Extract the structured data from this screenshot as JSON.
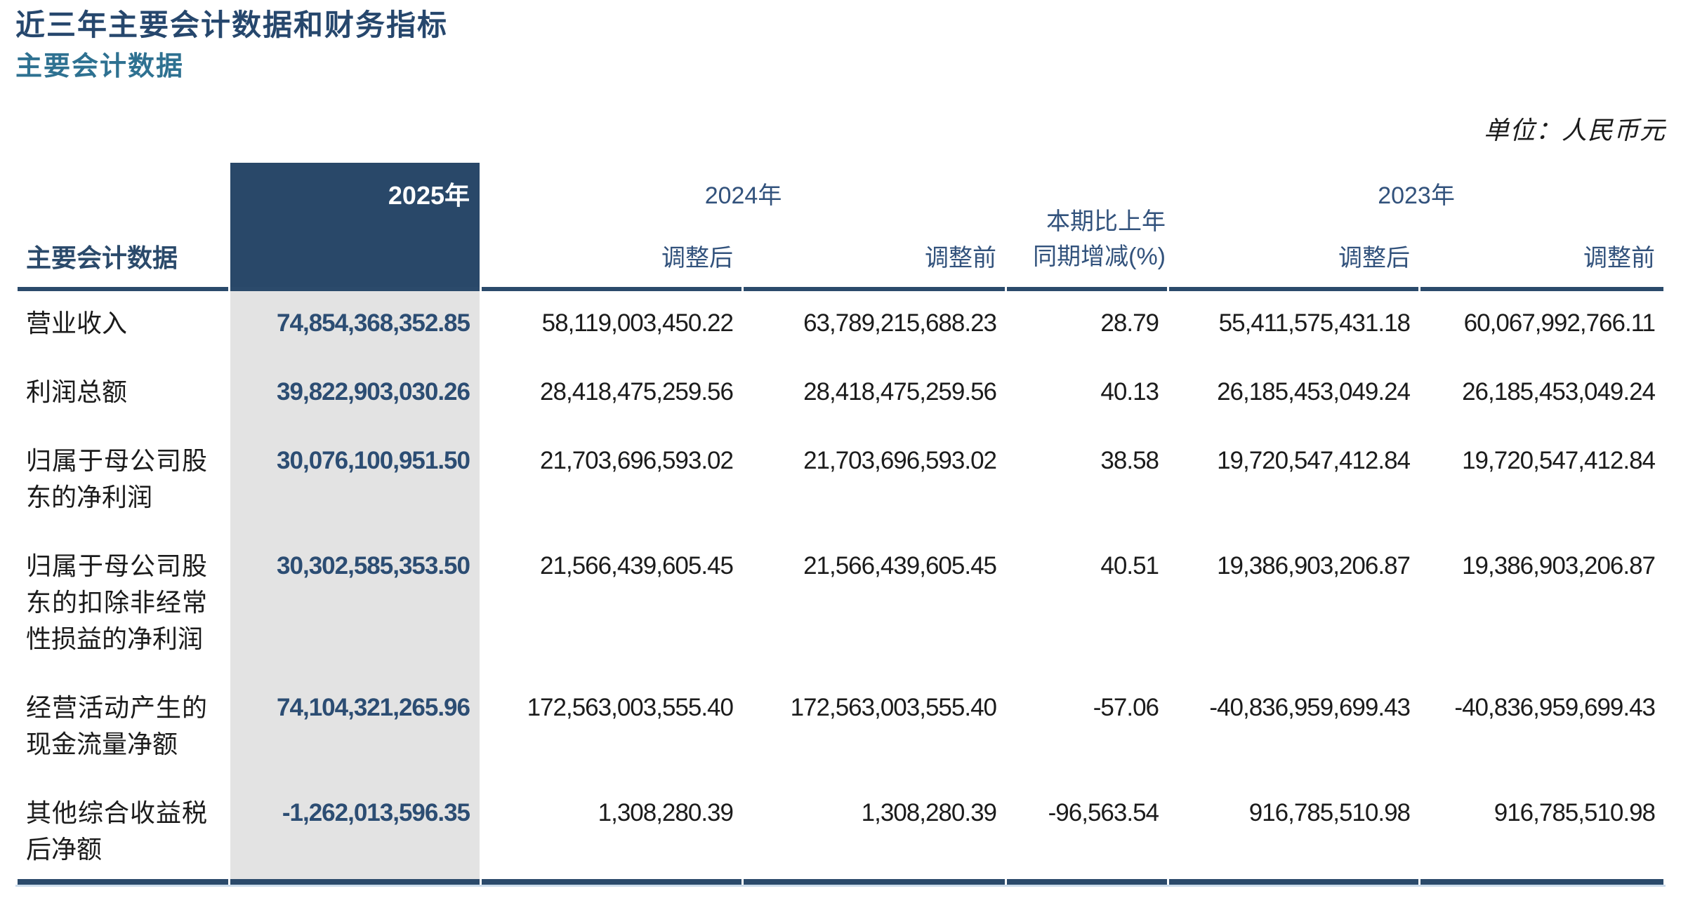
{
  "page": {
    "title": "近三年主要会计数据和财务指标",
    "subtitle": "主要会计数据",
    "unit_note": "单位：人民币元"
  },
  "table": {
    "corner_header": "主要会计数据",
    "col_groups": [
      {
        "label": "2025年"
      },
      {
        "label": "2024年",
        "sub": [
          "调整后",
          "调整前"
        ]
      },
      {
        "label_lines": [
          "本期比上年",
          "同期增减(%)"
        ]
      },
      {
        "label": "2023年",
        "sub": [
          "调整后",
          "调整前"
        ]
      }
    ],
    "rows": [
      {
        "label": "营业收入",
        "y2025": "74,854,368,352.85",
        "y2024_adj": "58,119,003,450.22",
        "y2024_pre": "63,789,215,688.23",
        "yoy": "28.79",
        "y2023_adj": "55,411,575,431.18",
        "y2023_pre": "60,067,992,766.11"
      },
      {
        "label": "利润总额",
        "y2025": "39,822,903,030.26",
        "y2024_adj": "28,418,475,259.56",
        "y2024_pre": "28,418,475,259.56",
        "yoy": "40.13",
        "y2023_adj": "26,185,453,049.24",
        "y2023_pre": "26,185,453,049.24"
      },
      {
        "label": "归属于母公司股东的净利润",
        "y2025": "30,076,100,951.50",
        "y2024_adj": "21,703,696,593.02",
        "y2024_pre": "21,703,696,593.02",
        "yoy": "38.58",
        "y2023_adj": "19,720,547,412.84",
        "y2023_pre": "19,720,547,412.84"
      },
      {
        "label": "归属于母公司股东的扣除非经常性损益的净利润",
        "y2025": "30,302,585,353.50",
        "y2024_adj": "21,566,439,605.45",
        "y2024_pre": "21,566,439,605.45",
        "yoy": "40.51",
        "y2023_adj": "19,386,903,206.87",
        "y2023_pre": "19,386,903,206.87"
      },
      {
        "label": "经营活动产生的现金流量净额",
        "y2025": "74,104,321,265.96",
        "y2024_adj": "172,563,003,555.40",
        "y2024_pre": "172,563,003,555.40",
        "yoy": "-57.06",
        "y2023_adj": "-40,836,959,699.43",
        "y2023_pre": "-40,836,959,699.43"
      },
      {
        "label": "其他综合收益税后净额",
        "y2025": "-1,262,013,596.35",
        "y2024_adj": "1,308,280.39",
        "y2024_pre": "1,308,280.39",
        "yoy": "-96,563.54",
        "y2023_adj": "916,785,510.98",
        "y2023_pre": "916,785,510.98"
      }
    ]
  },
  "colors": {
    "title": "#26476d",
    "subtitle": "#2e7191",
    "accent_navy": "#294869",
    "header_text": "#32527c",
    "highlight_bg": "#e3e3e3",
    "highlight_text": "#2c4d73",
    "body_text": "#1b1b1b",
    "rule": "#2b4a6b"
  }
}
